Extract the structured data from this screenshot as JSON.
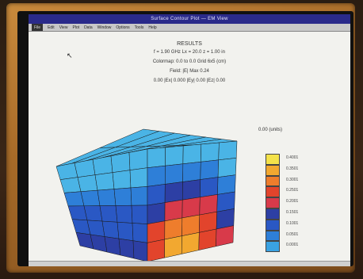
{
  "window": {
    "title": "Surface Contour Plot — EM View",
    "menu": [
      "File",
      "Edit",
      "View",
      "Plot",
      "Data",
      "Window",
      "Options",
      "Tools",
      "Help"
    ],
    "active_menu_index": 0
  },
  "plot_header": {
    "title": "RESULTS",
    "line1": "f = 1.90 GHz   Lx = 20.0   z = 1.00 in",
    "line2": "Colormap:  0.0 to 0.0  Grid 6x5 (cm)",
    "line3": "Field: |E|   Max 0.24",
    "line4": "0.00 |Ex|   0.000 |Ey|   0.00 |Ez|   0.00"
  },
  "scale": {
    "unit_label": "0.00 (units)",
    "colors": [
      "#f4e24a",
      "#f2a830",
      "#ee7d2c",
      "#e2442c",
      "#d83a4a",
      "#2d3fa4",
      "#2a58c4",
      "#2e7fd8",
      "#3aa2e2"
    ],
    "labels": [
      "0.4001",
      "0.3501",
      "0.3001",
      "0.2501",
      "0.2001",
      "0.1501",
      "0.1001",
      "0.0501",
      "0.0001"
    ]
  },
  "surface": {
    "colors": [
      "#4ab4e6",
      "#2e7fd8",
      "#2a58c4",
      "#2d3fa4",
      "#d83a4a",
      "#e2442c",
      "#ee7d2c",
      "#f2a830",
      "#f4e24a"
    ]
  }
}
